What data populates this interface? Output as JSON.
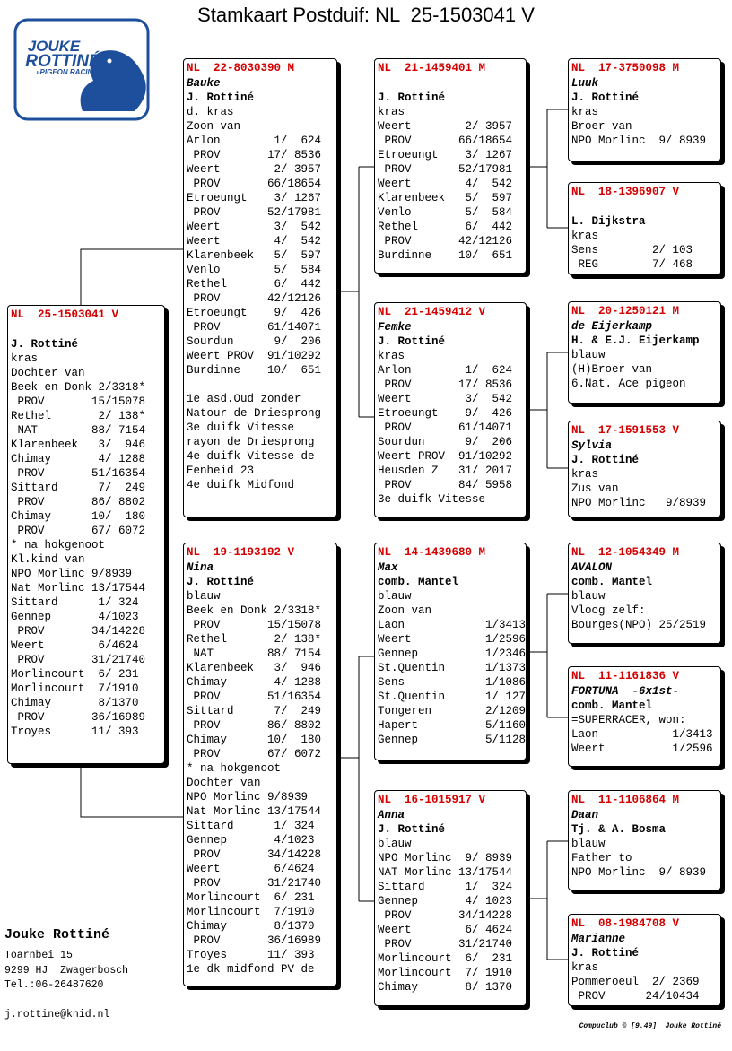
{
  "title": "Stamkaart Postduif: NL  25-1503041 V",
  "logo": {
    "line1": "JOUKE",
    "line2": "ROTTINÉ",
    "line3": "»PIGEON RACING«"
  },
  "cards": [
    {
      "ring": "NL  25-1503041 V",
      "breeder": "J. Rottiné",
      "lines": [
        "kras",
        "Dochter van",
        "Beek en Donk 2/3318*",
        " PROV       15/15078",
        "Rethel       2/ 138*",
        " NAT        88/ 7154",
        "Klarenbeek   3/  946",
        "Chimay       4/ 1288",
        " PROV       51/16354",
        "Sittard      7/  249",
        " PROV       86/ 8802",
        "Chimay      10/  180",
        " PROV       67/ 6072",
        "* na hokgenoot",
        "Kl.kind van",
        "NPO Morlinc 9/8939",
        "Nat Morlinc 13/17544",
        "Sittard      1/ 324",
        "Gennep       4/1023",
        " PROV       34/14228",
        "Weert        6/4624",
        " PROV       31/21740",
        "Morlincourt  6/ 231",
        "Morlincourt  7/1910",
        "Chimay       8/1370",
        " PROV       36/16989",
        "Troyes      11/ 393"
      ]
    },
    {
      "ring": "NL  22-8030390 M",
      "name": "Bauke",
      "breeder": "J. Rottiné",
      "lines": [
        "d. kras",
        "Zoon van",
        "Arlon        1/  624",
        " PROV       17/ 8536",
        "Weert        2/ 3957",
        " PROV       66/18654",
        "Etroeungt    3/ 1267",
        " PROV       52/17981",
        "Weert        3/  542",
        "Weert        4/  542",
        "Klarenbeek   5/  597",
        "Venlo        5/  584",
        "Rethel       6/  442",
        " PROV       42/12126",
        "Etroeungt    9/  426",
        " PROV       61/14071",
        "Sourdun      9/  206",
        "Weert PROV  91/10292",
        "Burdinne    10/  651"
      ],
      "remarks": [
        "1e asd.Oud zonder",
        "Natour de Driesprong",
        "3e duifk Vitesse",
        "rayon de Driesprong",
        "4e duifk Vitesse de",
        "Eenheid 23",
        "4e duifk Midfond"
      ]
    },
    {
      "ring": "NL  19-1193192 V",
      "name": "Nina",
      "breeder": "J. Rottiné",
      "lines": [
        "blauw",
        "Beek en Donk 2/3318*",
        " PROV       15/15078",
        "Rethel       2/ 138*",
        " NAT        88/ 7154",
        "Klarenbeek   3/  946",
        "Chimay       4/ 1288",
        " PROV       51/16354",
        "Sittard      7/  249",
        " PROV       86/ 8802",
        "Chimay      10/  180",
        " PROV       67/ 6072",
        "* na hokgenoot",
        "Dochter van",
        "NPO Morlinc 9/8939",
        "Nat Morlinc 13/17544",
        "Sittard      1/ 324",
        "Gennep       4/1023",
        " PROV       34/14228",
        "Weert        6/4624",
        " PROV       31/21740",
        "Morlincourt  6/ 231",
        "Morlincourt  7/1910",
        "Chimay       8/1370",
        " PROV       36/16989",
        "Troyes      11/ 393",
        "1e dk midfond PV de"
      ]
    },
    {
      "ring": "NL  21-1459401 M",
      "breeder": "J. Rottiné",
      "lines": [
        "kras",
        "Weert        2/ 3957",
        " PROV       66/18654",
        "Etroeungt    3/ 1267",
        " PROV       52/17981",
        "Weert        4/  542",
        "Klarenbeek   5/  597",
        "Venlo        5/  584",
        "Rethel       6/  442",
        " PROV       42/12126",
        "Burdinne    10/  651"
      ]
    },
    {
      "ring": "NL  21-1459412 V",
      "name": "Femke",
      "breeder": "J. Rottiné",
      "lines": [
        "kras",
        "Arlon        1/  624",
        " PROV       17/ 8536",
        "Weert        3/  542",
        "Etroeungt    9/  426",
        " PROV       61/14071",
        "Sourdun      9/  206",
        "Weert PROV  91/10292",
        "Heusden Z   31/ 2017",
        " PROV       84/ 5958",
        "3e duifk Vitesse"
      ]
    },
    {
      "ring": "NL  14-1439680 M",
      "name": "Max",
      "breeder": "comb. Mantel",
      "lines": [
        "blauw",
        "Zoon van",
        "Laon            1/3413",
        "Weert           1/2596",
        "Gennep          1/2346",
        "St.Quentin      1/1373",
        "Sens            1/1086",
        "St.Quentin      1/ 127",
        "Tongeren        2/1209",
        "Hapert          5/1160",
        "Gennep          5/1128"
      ]
    },
    {
      "ring": "NL  16-1015917 V",
      "name": "Anna",
      "breeder": "J. Rottiné",
      "lines": [
        "blauw",
        "NPO Morlinc  9/ 8939",
        "NAT Morlinc 13/17544",
        "Sittard      1/  324",
        "Gennep       4/ 1023",
        " PROV       34/14228",
        "Weert        6/ 4624",
        " PROV       31/21740",
        "Morlincourt  6/  231",
        "Morlincourt  7/ 1910",
        "Chimay       8/ 1370"
      ]
    },
    {
      "ring": "NL  17-3750098 M",
      "name": "Luuk",
      "breeder": "J. Rottiné",
      "lines": [
        "kras",
        "Broer van",
        "NPO Morlinc  9/ 8939"
      ]
    },
    {
      "ring": "NL  18-1396907 V",
      "breeder": "L. Dijkstra",
      "lines": [
        "kras",
        "Sens        2/ 103",
        " REG        7/ 468"
      ]
    },
    {
      "ring": "NL  20-1250121 M",
      "name": "de Eijerkamp",
      "breeder": "H. & E.J. Eijerkamp",
      "lines": [
        "blauw",
        "(H)Broer van",
        "6.Nat. Ace pigeon"
      ]
    },
    {
      "ring": "NL  17-1591553 V",
      "name": "Sylvia",
      "breeder": "J. Rottiné",
      "lines": [
        "kras",
        "Zus van",
        "NPO Morlinc   9/8939"
      ]
    },
    {
      "ring": "NL  12-1054349 M",
      "name": "AVALON",
      "breeder": "comb. Mantel",
      "lines": [
        "blauw",
        "Vloog zelf:",
        "Bourges(NPO) 25/2519"
      ]
    },
    {
      "ring": "NL  11-1161836 V",
      "name": "FORTUNA  -6x1st-",
      "breeder": "comb. Mantel",
      "lines": [
        "=SUPERRACER, won:",
        "Laon           1/3413",
        "Weert          1/2596"
      ]
    },
    {
      "ring": "NL  11-1106864 M",
      "name": "Daan",
      "breeder": "Tj. & A. Bosma",
      "lines": [
        "blauw",
        "Father to",
        "NPO Morlinc  9/ 8939"
      ]
    },
    {
      "ring": "NL  08-1984708 V",
      "name": "Marianne",
      "breeder": "J. Rottiné",
      "lines": [
        "kras",
        "Pommeroeul  2/ 2369",
        " PROV      24/10434"
      ]
    }
  ],
  "contact": {
    "name": "Jouke Rottiné",
    "address": [
      "Toarnbei 15",
      "9299 HJ  Zwagerbosch",
      "Tel.:06-26487620"
    ],
    "email": "j.rottine@knid.nl"
  },
  "footer": "Compuclub © [9.49]  Jouke Rottiné"
}
